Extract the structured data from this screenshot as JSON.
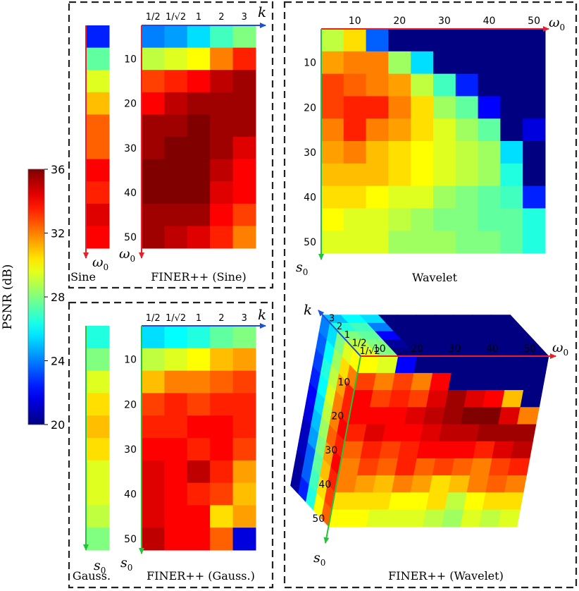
{
  "colorbar": {
    "label": "PSNR (dB)",
    "min": 20,
    "max": 36,
    "ticks": [
      "36",
      "32",
      "28",
      "24",
      "20"
    ],
    "colormap": "jet"
  },
  "chart_data": [
    {
      "id": "sine-column",
      "type": "heatmap",
      "caption": "Sine",
      "ylabel": "ω0",
      "ylabel_var": "ω",
      "ylabel_sub": "0",
      "values": [
        [
          22.5
        ],
        [
          27.5
        ],
        [
          29.5
        ],
        [
          31.0
        ],
        [
          32.5
        ],
        [
          32.5
        ],
        [
          34.0
        ],
        [
          33.5
        ],
        [
          34.5
        ],
        [
          34.0
        ]
      ]
    },
    {
      "id": "finer-sine",
      "type": "heatmap",
      "caption": "FINER++ (Sine)",
      "xlabel": "k",
      "ylabel": "ω0",
      "ylabel_var": "ω",
      "ylabel_sub": "0",
      "x_ticks": [
        "1/2",
        "1/√2",
        "1",
        "2",
        "3"
      ],
      "y_ticks": [
        "10",
        "20",
        "30",
        "40",
        "50"
      ],
      "values": [
        [
          24.0,
          24.5,
          25.5,
          27.0,
          28.0
        ],
        [
          29.0,
          29.5,
          30.0,
          32.0,
          33.5
        ],
        [
          33.0,
          33.5,
          34.0,
          35.0,
          35.5
        ],
        [
          34.0,
          35.0,
          35.5,
          35.5,
          35.5
        ],
        [
          35.5,
          35.5,
          36.0,
          35.5,
          35.5
        ],
        [
          35.5,
          36.0,
          36.0,
          35.5,
          34.5
        ],
        [
          36.0,
          36.0,
          36.0,
          35.0,
          34.0
        ],
        [
          36.0,
          36.0,
          36.0,
          34.5,
          34.0
        ],
        [
          35.5,
          35.5,
          35.5,
          34.0,
          33.0
        ],
        [
          35.5,
          35.0,
          34.5,
          33.5,
          32.0
        ]
      ]
    },
    {
      "id": "gauss-column",
      "type": "heatmap",
      "caption": "Gauss.",
      "ylabel": "s0",
      "ylabel_var": "s",
      "ylabel_sub": "0",
      "values": [
        [
          26.5
        ],
        [
          28.0
        ],
        [
          29.5
        ],
        [
          30.5
        ],
        [
          31.0
        ],
        [
          30.5
        ],
        [
          29.5
        ],
        [
          29.5
        ],
        [
          29.0
        ],
        [
          28.0
        ]
      ]
    },
    {
      "id": "finer-gauss",
      "type": "heatmap",
      "caption": "FINER++ (Gauss.)",
      "xlabel": "k",
      "ylabel": "s0",
      "ylabel_var": "s",
      "ylabel_sub": "0",
      "x_ticks": [
        "1/2",
        "1/√2",
        "1",
        "2",
        "3"
      ],
      "y_ticks": [
        "10",
        "20",
        "30",
        "40",
        "50"
      ],
      "values": [
        [
          25.5,
          26.0,
          26.5,
          27.5,
          28.0
        ],
        [
          29.0,
          29.5,
          30.0,
          31.0,
          31.5
        ],
        [
          31.0,
          32.0,
          32.0,
          32.5,
          33.0
        ],
        [
          33.0,
          33.5,
          33.0,
          33.5,
          33.5
        ],
        [
          33.5,
          33.5,
          34.0,
          34.0,
          33.5
        ],
        [
          34.0,
          34.0,
          33.5,
          34.0,
          33.0
        ],
        [
          34.5,
          34.0,
          35.0,
          33.5,
          31.5
        ],
        [
          34.5,
          34.0,
          33.5,
          33.0,
          31.0
        ],
        [
          34.5,
          34.0,
          34.0,
          30.5,
          31.5
        ],
        [
          35.0,
          34.0,
          34.0,
          32.5,
          21.5
        ]
      ]
    },
    {
      "id": "wavelet",
      "type": "heatmap",
      "caption": "Wavelet",
      "xlabel": "ω0",
      "xlabel_var": "ω",
      "xlabel_sub": "0",
      "ylabel": "s0",
      "ylabel_var": "s",
      "ylabel_sub": "0",
      "x_ticks": [
        "10",
        "20",
        "30",
        "40",
        "50"
      ],
      "y_ticks": [
        "10",
        "20",
        "30",
        "40",
        "50"
      ],
      "x_tick_cols": [
        1.5,
        3.5,
        5.5,
        7.5,
        9.5
      ],
      "y_tick_rows": [
        1.5,
        3.5,
        5.5,
        7.5,
        9.5
      ],
      "values": [
        [
          29.0,
          30.5,
          23.5,
          20,
          20,
          20,
          20,
          20,
          20,
          20
        ],
        [
          31.5,
          32.0,
          32.0,
          28.5,
          25.5,
          20,
          20,
          20,
          20,
          20
        ],
        [
          33.0,
          32.5,
          32.0,
          31.5,
          29.0,
          27.0,
          22.5,
          20,
          20,
          20
        ],
        [
          33.0,
          33.5,
          33.5,
          32.0,
          30.5,
          28.5,
          27.5,
          22.0,
          20,
          20
        ],
        [
          32.0,
          33.5,
          32.0,
          31.5,
          30.5,
          29.5,
          28.5,
          27.5,
          20,
          21.5
        ],
        [
          31.5,
          32.0,
          31.0,
          30.5,
          30.0,
          29.5,
          29.0,
          28.5,
          25.5,
          20
        ],
        [
          31.0,
          31.0,
          31.0,
          30.5,
          30.0,
          29.5,
          29.0,
          28.5,
          26.5,
          20
        ],
        [
          30.5,
          30.5,
          30.0,
          29.5,
          29.5,
          28.5,
          28.0,
          27.5,
          27.0,
          22.5
        ],
        [
          30.0,
          29.5,
          29.5,
          29.0,
          28.5,
          28.0,
          28.0,
          27.5,
          27.5,
          26.5
        ],
        [
          29.5,
          29.5,
          29.5,
          28.5,
          28.5,
          28.5,
          28.0,
          28.0,
          27.5,
          26.5
        ]
      ]
    },
    {
      "id": "finer-wavelet",
      "type": "heatmap",
      "caption": "FINER++ (Wavelet)",
      "xlabel": "ω0",
      "xlabel_var": "ω",
      "xlabel_sub": "0",
      "ylabel": "s0",
      "ylabel_var": "s",
      "ylabel_sub": "0",
      "zlabel": "k",
      "x_ticks": [
        "10",
        "20",
        "30",
        "40",
        "50"
      ],
      "y_ticks": [
        "10",
        "20",
        "30",
        "40",
        "50"
      ],
      "k_ticks": [
        "3",
        "2",
        "1",
        "1/2",
        "1/√2"
      ],
      "front_face": [
        [
          30.0,
          29.5,
          22.0,
          20,
          20,
          20,
          20,
          20,
          20,
          20
        ],
        [
          33.0,
          32.0,
          33.0,
          32.0,
          34.0,
          20,
          20,
          20,
          20,
          20
        ],
        [
          34.0,
          33.0,
          33.5,
          33.0,
          34.5,
          35.5,
          34.5,
          34.0,
          31.0,
          20
        ],
        [
          34.0,
          34.0,
          34.0,
          34.5,
          35.0,
          35.5,
          36.0,
          36.0,
          34.5,
          32.0
        ],
        [
          33.5,
          34.5,
          34.0,
          34.0,
          34.5,
          35.0,
          35.0,
          35.5,
          35.5,
          35.5
        ],
        [
          32.5,
          33.5,
          33.0,
          33.5,
          34.0,
          34.0,
          34.0,
          33.5,
          34.5,
          35.0
        ],
        [
          32.0,
          33.0,
          32.5,
          33.5,
          32.5,
          33.0,
          32.5,
          32.0,
          33.0,
          33.5
        ],
        [
          32.0,
          31.5,
          31.0,
          32.0,
          31.5,
          30.5,
          31.0,
          32.0,
          32.5,
          32.0
        ],
        [
          30.5,
          30.5,
          30.5,
          30.0,
          30.0,
          30.5,
          29.0,
          30.0,
          30.5,
          30.5
        ],
        [
          30.0,
          30.0,
          29.5,
          29.5,
          29.5,
          29.0,
          28.5,
          29.5,
          29.0,
          29.5
        ]
      ],
      "side_face": [
        [
          24.0,
          25.5,
          28.0,
          29.5,
          30.0
        ],
        [
          23.5,
          26.0,
          28.5,
          30.5,
          32.0
        ],
        [
          23.0,
          26.5,
          29.0,
          31.5,
          33.5
        ],
        [
          22.5,
          26.0,
          29.5,
          32.0,
          33.5
        ],
        [
          22.0,
          25.5,
          29.0,
          32.0,
          34.0
        ],
        [
          21.5,
          25.0,
          28.5,
          32.5,
          33.5
        ],
        [
          21.0,
          24.5,
          28.0,
          31.5,
          34.0
        ],
        [
          21.0,
          23.5,
          27.5,
          31.0,
          33.5
        ],
        [
          20.5,
          23.5,
          27.0,
          30.5,
          33.0
        ],
        [
          20.5,
          22.5,
          26.5,
          30.0,
          32.5
        ]
      ],
      "top_face": [
        [
          29.5,
          28.0,
          20,
          20,
          20,
          20,
          20,
          20,
          20,
          20
        ],
        [
          29.0,
          28.0,
          20.5,
          20,
          20,
          20,
          20,
          20,
          20,
          20
        ],
        [
          28.0,
          27.5,
          22.0,
          20,
          20,
          20,
          20,
          20,
          20,
          20
        ],
        [
          26.5,
          27.0,
          24.0,
          20,
          20,
          20,
          20,
          20,
          20,
          20
        ],
        [
          25.0,
          26.0,
          25.5,
          20,
          20,
          20,
          20,
          20,
          20,
          20
        ]
      ]
    }
  ],
  "colors": {
    "panel_border": "#222222",
    "axis_x_red": "#e8202a",
    "axis_y_green": "#22c23a",
    "axis_k_blue": "#1a4fe0"
  }
}
